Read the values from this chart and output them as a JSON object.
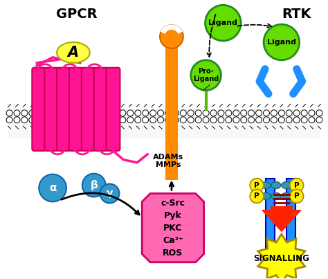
{
  "background_color": "#ffffff",
  "gpcr_label": "GPCR",
  "rtk_label": "RTK",
  "adams_mmps_label": "ADAMs\nMMPs",
  "signalling_label": "SIGNALLING",
  "kinase_box_label": "c-Src\nPyk\nPKC\nCa²⁺\nROS",
  "alpha_label": "α",
  "beta_label": "β",
  "gamma_label": "γ",
  "gpcr_helix_color": "#ff1493",
  "agonist_color": "#ffff44",
  "adams_color": "#ff8c00",
  "rtk_color": "#1e90ff",
  "ligand_color": "#66dd00",
  "kinase_box_color": "#ff69b4",
  "signalling_color": "#ffff00",
  "subunit_color": "#3399cc",
  "arrow_color": "#ff2200",
  "p_circle_color": "#ffee00",
  "p_blob_color": "#3399aa"
}
